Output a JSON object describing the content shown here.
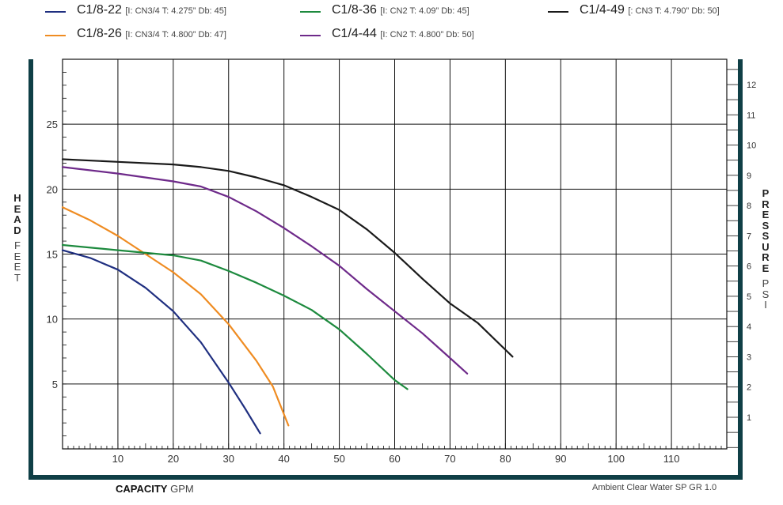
{
  "chart_data": {
    "type": "line",
    "x_axis": {
      "label_bold": "CAPACITY",
      "label_unit": "GPM",
      "xlim": [
        0,
        120
      ],
      "ticks": [
        10,
        20,
        30,
        40,
        50,
        60,
        70,
        80,
        90,
        100,
        110
      ],
      "gridlines": [
        10,
        20,
        30,
        40,
        50,
        60,
        70,
        80,
        90,
        100,
        110
      ]
    },
    "y_axis_left": {
      "label_bold": "HEAD",
      "label_unit": "FEET",
      "ylim": [
        0,
        30
      ],
      "ticks": [
        5,
        10,
        15,
        20,
        25
      ]
    },
    "y_axis_right": {
      "label_bold": "PRESSURE",
      "label_unit": "PSI",
      "ticks": [
        1,
        2,
        3,
        4,
        5,
        6,
        7,
        8,
        9,
        10,
        11,
        12
      ]
    },
    "grid": true,
    "note": "Ambient Clear Water SP GR 1.0",
    "series": [
      {
        "name": "C1/8-22",
        "spec": "[I: CN3/4 T: 4.275” Db: 45]",
        "color": "#1f2f80",
        "x": [
          0,
          5,
          10,
          15,
          20,
          25,
          30,
          33,
          35.7
        ],
        "y": [
          15.3,
          14.7,
          13.8,
          12.4,
          10.6,
          8.2,
          5.1,
          3.1,
          1.2
        ]
      },
      {
        "name": "C1/8-26",
        "spec": "[I: CN3/4 T: 4.800” Db: 47]",
        "color": "#ef8c22",
        "x": [
          0,
          5,
          10,
          15,
          20,
          25,
          30,
          35,
          38,
          40.8
        ],
        "y": [
          18.6,
          17.6,
          16.4,
          15.0,
          13.6,
          11.9,
          9.6,
          6.8,
          4.8,
          1.8
        ]
      },
      {
        "name": "C1/8-36",
        "spec": "[I: CN2 T: 4.09” Db: 45]",
        "color": "#1d8a3e",
        "x": [
          0,
          10,
          15,
          20,
          25,
          30,
          35,
          40,
          45,
          50,
          55,
          60,
          62.3
        ],
        "y": [
          15.7,
          15.3,
          15.1,
          14.9,
          14.5,
          13.7,
          12.8,
          11.8,
          10.7,
          9.2,
          7.3,
          5.3,
          4.6
        ]
      },
      {
        "name": "C1/4-44",
        "spec": "[I: CN2 T: 4.800” Db: 50]",
        "color": "#6e2a8a",
        "x": [
          0,
          10,
          20,
          25,
          30,
          35,
          40,
          45,
          50,
          55,
          60,
          65,
          70,
          73.1
        ],
        "y": [
          21.7,
          21.2,
          20.6,
          20.2,
          19.4,
          18.3,
          17.0,
          15.6,
          14.1,
          12.3,
          10.6,
          8.9,
          7.0,
          5.8
        ]
      },
      {
        "name": "C1/4-49",
        "spec": "[: CN3 T: 4.790” Db: 50]",
        "color": "#1a1a1a",
        "x": [
          0,
          10,
          20,
          25,
          30,
          35,
          40,
          45,
          50,
          55,
          60,
          65,
          70,
          75,
          81.3
        ],
        "y": [
          22.3,
          22.1,
          21.9,
          21.7,
          21.4,
          20.9,
          20.3,
          19.4,
          18.4,
          16.9,
          15.1,
          13.1,
          11.2,
          9.7,
          7.1
        ]
      }
    ]
  }
}
